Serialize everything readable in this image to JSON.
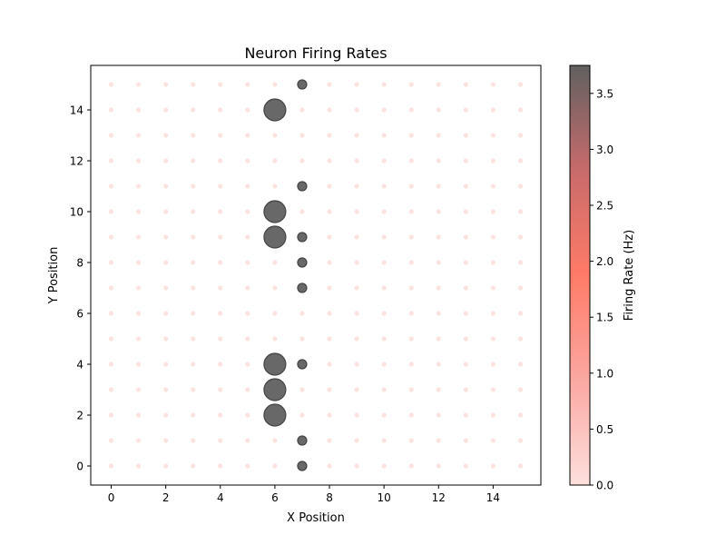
{
  "chart_data": {
    "type": "scatter",
    "title": "Neuron Firing Rates",
    "xlabel": "X Position",
    "ylabel": "Y Position",
    "xlim": [
      -0.75,
      15.75
    ],
    "ylim": [
      -0.75,
      15.75
    ],
    "x_ticks": [
      0,
      2,
      4,
      6,
      8,
      10,
      12,
      14
    ],
    "y_ticks": [
      0,
      2,
      4,
      6,
      8,
      10,
      12,
      14
    ],
    "grid": false,
    "grid_size": 16,
    "default_rate": 0.0,
    "active_neurons": [
      {
        "x": 6,
        "y": 14,
        "rate": 3.75
      },
      {
        "x": 6,
        "y": 10,
        "rate": 3.75
      },
      {
        "x": 6,
        "y": 9,
        "rate": 3.75
      },
      {
        "x": 6,
        "y": 4,
        "rate": 3.75
      },
      {
        "x": 6,
        "y": 3,
        "rate": 3.75
      },
      {
        "x": 6,
        "y": 2,
        "rate": 3.75
      },
      {
        "x": 7,
        "y": 15,
        "rate": 3.75
      },
      {
        "x": 7,
        "y": 11,
        "rate": 3.75
      },
      {
        "x": 7,
        "y": 9,
        "rate": 3.75
      },
      {
        "x": 7,
        "y": 8,
        "rate": 3.75
      },
      {
        "x": 7,
        "y": 7,
        "rate": 3.75
      },
      {
        "x": 7,
        "y": 4,
        "rate": 3.75
      },
      {
        "x": 7,
        "y": 1,
        "rate": 3.75
      },
      {
        "x": 7,
        "y": 0,
        "rate": 3.75
      }
    ],
    "colorbar": {
      "label": "Firing Rate (Hz)",
      "min": 0.0,
      "max": 3.75,
      "ticks": [
        "0.0",
        "0.5",
        "1.0",
        "1.5",
        "2.0",
        "2.5",
        "3.0",
        "3.5"
      ],
      "colors": [
        "#fde0dd",
        "#fba8a2",
        "#ff7b67",
        "#c86b6b",
        "#606060"
      ]
    }
  }
}
